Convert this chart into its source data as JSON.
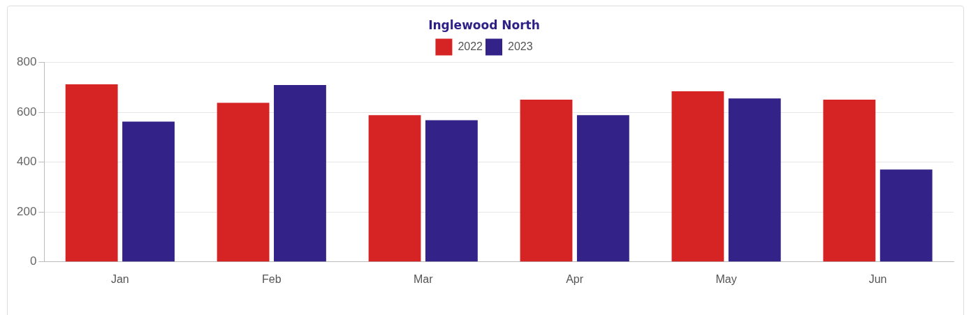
{
  "chart_data": {
    "type": "bar",
    "title": "Inglewood North",
    "categories": [
      "Jan",
      "Feb",
      "Mar",
      "Apr",
      "May",
      "Jun"
    ],
    "series": [
      {
        "name": "2022",
        "color": "#d62424",
        "values": [
          712,
          638,
          588,
          650,
          684,
          650
        ]
      },
      {
        "name": "2023",
        "color": "#332288",
        "values": [
          562,
          709,
          568,
          588,
          655,
          370
        ]
      }
    ],
    "ylim": [
      0,
      800
    ],
    "yticks": [
      0,
      200,
      400,
      600,
      800
    ],
    "grid": "y",
    "legend": "top"
  }
}
